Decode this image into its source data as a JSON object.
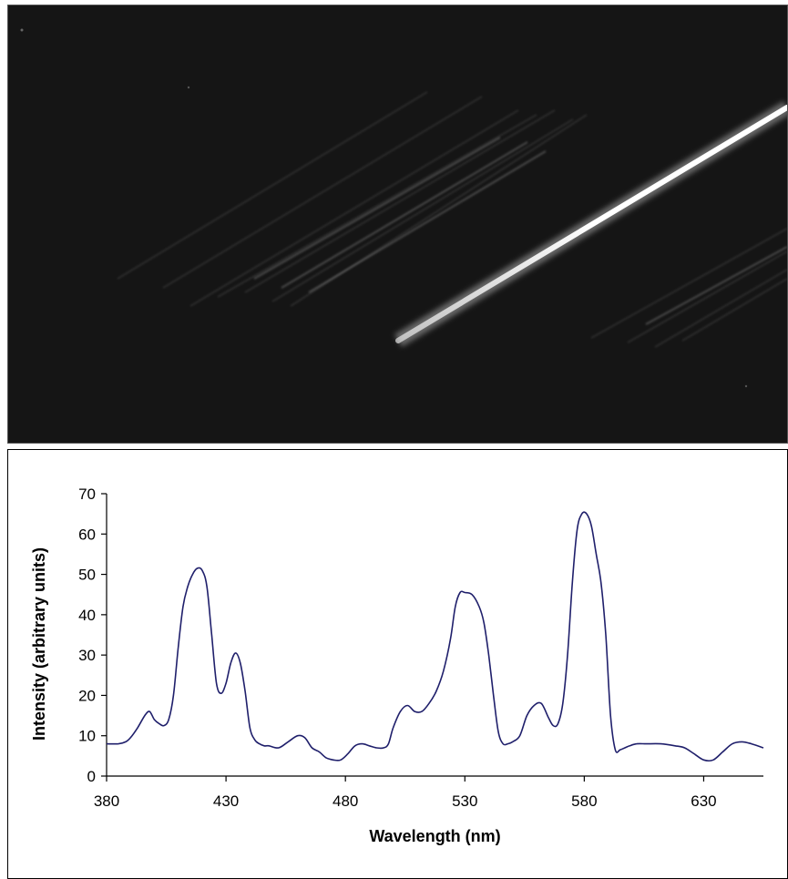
{
  "photo": {
    "description_icon": "spectrum-streak-photo",
    "background_color": "#111111"
  },
  "chart_data": {
    "type": "line",
    "xlabel": "Wavelength (nm)",
    "ylabel": "Intensity (arbitrary units)",
    "xlim": [
      380,
      655
    ],
    "ylim": [
      0,
      70
    ],
    "xticks": [
      380,
      430,
      480,
      530,
      580,
      630
    ],
    "yticks": [
      0,
      10,
      20,
      30,
      40,
      50,
      60,
      70
    ],
    "grid": false,
    "line_color": "#1f1f6b",
    "series": [
      {
        "x": [
          380,
          385,
          388,
          390,
          393,
          396,
          398,
          400,
          402,
          404,
          406,
          408,
          410,
          412,
          414,
          416,
          418,
          420,
          422,
          424,
          426,
          428,
          430,
          432,
          434,
          436,
          438,
          440,
          442,
          444,
          446,
          448,
          452,
          456,
          460,
          463,
          466,
          469,
          472,
          475,
          478,
          481,
          484,
          487,
          490,
          493,
          496,
          498,
          500,
          503,
          506,
          509,
          512,
          515,
          518,
          521,
          524,
          526,
          528,
          530,
          533,
          536,
          538,
          540,
          542,
          544,
          546,
          548,
          550,
          553,
          556,
          559,
          562,
          565,
          567,
          569,
          571,
          573,
          575,
          577,
          579,
          581,
          583,
          585,
          587,
          589,
          591,
          593,
          595,
          597,
          599,
          602,
          606,
          612,
          618,
          622,
          626,
          630,
          634,
          638,
          642,
          646,
          650,
          655
        ],
        "y": [
          8,
          8,
          8.5,
          9.5,
          12,
          15,
          16,
          14,
          13,
          12.5,
          14,
          20,
          32,
          42,
          47,
          50,
          51.5,
          51,
          47,
          35,
          23,
          20.5,
          23,
          28,
          30.5,
          28,
          21,
          12,
          9,
          8,
          7.5,
          7.5,
          7,
          8.5,
          10,
          9.5,
          7,
          6,
          4.5,
          4,
          4,
          5.5,
          7.5,
          8,
          7.5,
          7,
          7,
          8,
          12,
          16,
          17.5,
          16,
          16,
          18,
          21,
          26,
          34,
          42,
          45.5,
          45.5,
          45,
          42,
          38,
          30,
          20,
          11,
          8,
          8,
          8.5,
          10,
          15,
          17.5,
          18,
          14.5,
          12.5,
          13,
          18,
          30,
          48,
          61,
          65,
          65,
          62,
          55,
          48,
          35,
          15,
          6.5,
          6.5,
          7,
          7.5,
          8,
          8,
          8,
          7.5,
          7,
          5.5,
          4,
          4,
          6,
          8,
          8.5,
          8,
          7
        ]
      }
    ]
  }
}
